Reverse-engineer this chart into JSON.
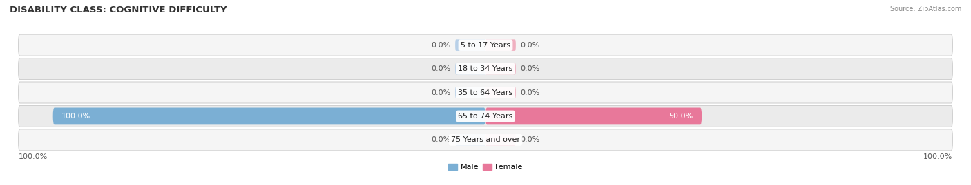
{
  "title": "DISABILITY CLASS: COGNITIVE DIFFICULTY",
  "source": "Source: ZipAtlas.com",
  "categories": [
    "5 to 17 Years",
    "18 to 34 Years",
    "35 to 64 Years",
    "65 to 74 Years",
    "75 Years and over"
  ],
  "male_values": [
    0.0,
    0.0,
    0.0,
    100.0,
    0.0
  ],
  "female_values": [
    0.0,
    0.0,
    0.0,
    50.0,
    0.0
  ],
  "male_color": "#7bafd4",
  "female_color": "#e8789a",
  "male_color_light": "#b8d0e8",
  "female_color_light": "#f0b0c0",
  "row_bg_even": "#f5f5f5",
  "row_bg_odd": "#ebebeb",
  "max_val": 100.0,
  "title_fontsize": 9.5,
  "label_fontsize": 8,
  "tick_fontsize": 8,
  "axis_label_left": "100.0%",
  "axis_label_right": "100.0%",
  "stub_size": 7.0,
  "row_edge_color": "#d0d0d0"
}
